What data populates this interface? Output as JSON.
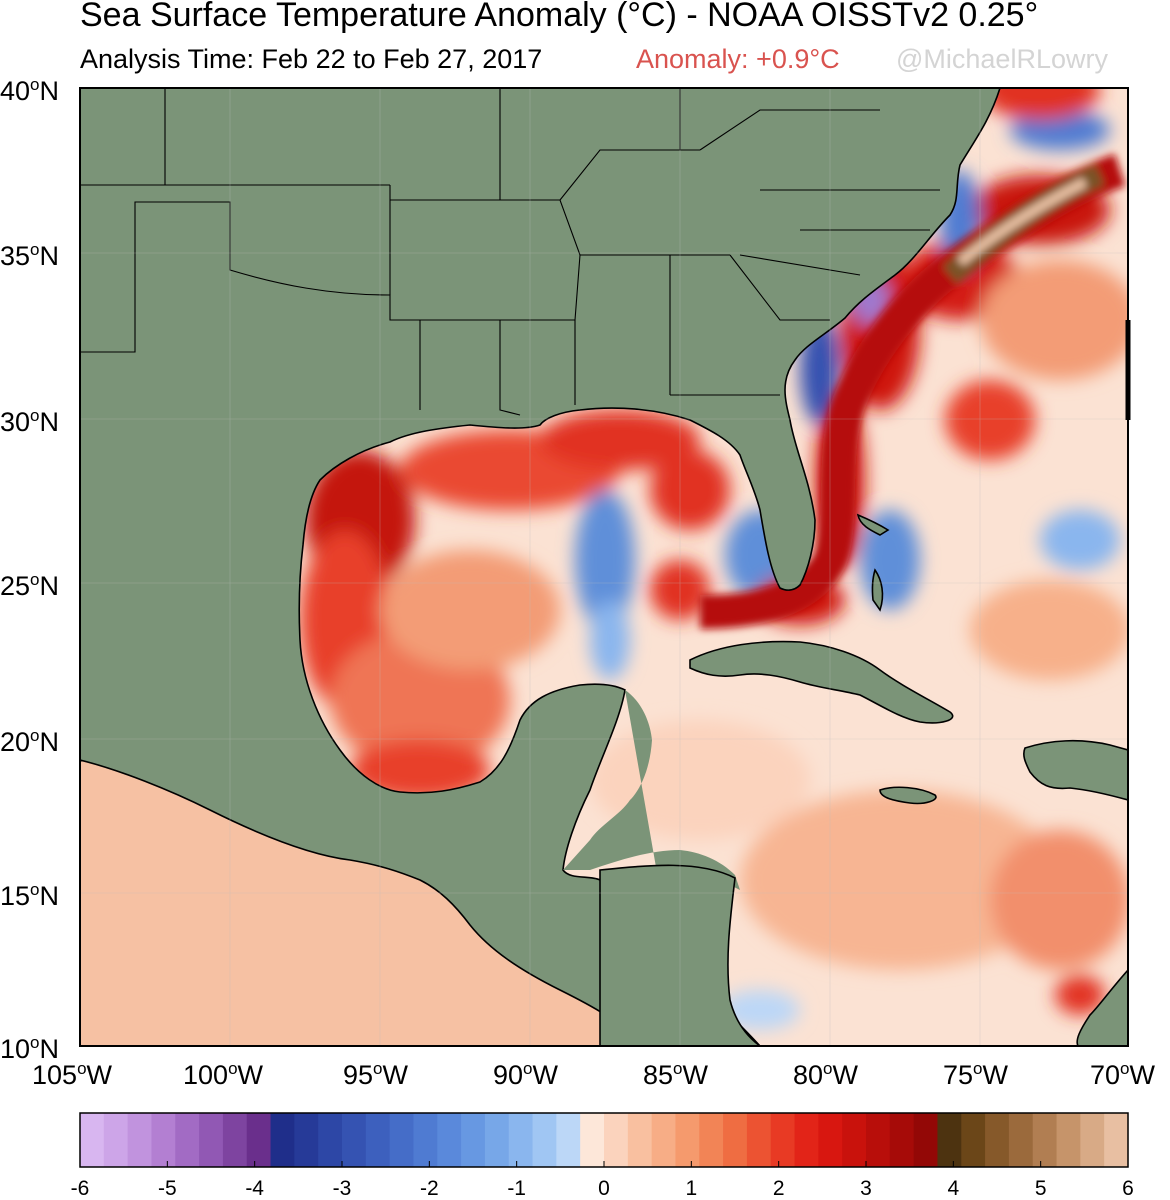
{
  "header": {
    "title": "Sea Surface Temperature Anomaly (°C) - NOAA OISSTv2 0.25°",
    "analysis_time": "Analysis Time: Feb 22 to Feb 27, 2017",
    "anomaly": "Anomaly: +0.9°C",
    "credit": "@MichaelRLowry"
  },
  "map": {
    "lat_labels": [
      {
        "deg": "40",
        "hemi": "N"
      },
      {
        "deg": "35",
        "hemi": "N"
      },
      {
        "deg": "30",
        "hemi": "N"
      },
      {
        "deg": "25",
        "hemi": "N"
      },
      {
        "deg": "20",
        "hemi": "N"
      },
      {
        "deg": "15",
        "hemi": "N"
      },
      {
        "deg": "10",
        "hemi": "N"
      }
    ],
    "lon_labels": [
      {
        "deg": "105",
        "hemi": "W"
      },
      {
        "deg": "100",
        "hemi": "W"
      },
      {
        "deg": "95",
        "hemi": "W"
      },
      {
        "deg": "90",
        "hemi": "W"
      },
      {
        "deg": "85",
        "hemi": "W"
      },
      {
        "deg": "80",
        "hemi": "W"
      },
      {
        "deg": "75",
        "hemi": "W"
      },
      {
        "deg": "70",
        "hemi": "W"
      }
    ],
    "land_color": "#7b9478",
    "ocean_neutral": "#ffffff"
  },
  "colorbar": {
    "ticks": [
      "-6",
      "-5",
      "-4",
      "-3",
      "-2",
      "-1",
      "0",
      "1",
      "2",
      "3",
      "4",
      "5",
      "6"
    ],
    "colors": [
      "#d8b6f0",
      "#cda5e8",
      "#c193de",
      "#b37fd2",
      "#a26bc4",
      "#9158b4",
      "#7e44a0",
      "#6a2f8c",
      "#1f2e8a",
      "#263a98",
      "#2d47a6",
      "#3553b2",
      "#3d60be",
      "#456dc8",
      "#4f7bd2",
      "#5a89db",
      "#6798e2",
      "#77a7e8",
      "#8ab6ee",
      "#a0c6f3",
      "#bcd7f7",
      "#fde7d9",
      "#fbd3bd",
      "#f9c0a0",
      "#f7ad86",
      "#f59a6d",
      "#f28456",
      "#ef6d42",
      "#ec5332",
      "#e83a24",
      "#e22418",
      "#d81710",
      "#c9120c",
      "#b80e0a",
      "#a60b08",
      "#930806",
      "#4d3310",
      "#6b4618",
      "#86592a",
      "#9b6a3c",
      "#b17e52",
      "#c6946a",
      "#d8aa86",
      "#e8bfa2"
    ]
  }
}
